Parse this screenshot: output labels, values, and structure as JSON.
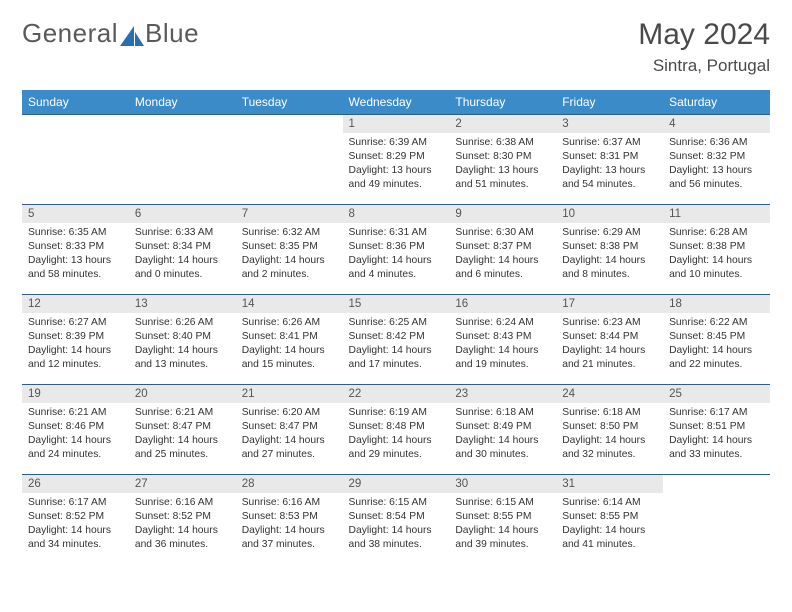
{
  "logo": {
    "text1": "General",
    "text2": "Blue",
    "text_color": "#5a5a5a",
    "icon_color": "#2a6db3"
  },
  "title": {
    "month": "May 2024",
    "location": "Sintra, Portugal"
  },
  "colors": {
    "header_bg": "#3b8bc9",
    "header_text": "#ffffff",
    "daynum_bg": "#e9e9e9",
    "border": "#2f5d87",
    "body_text": "#333333"
  },
  "weekdays": [
    "Sunday",
    "Monday",
    "Tuesday",
    "Wednesday",
    "Thursday",
    "Friday",
    "Saturday"
  ],
  "leading_blanks": 3,
  "days": [
    {
      "n": 1,
      "sr": "6:39 AM",
      "ss": "8:29 PM",
      "dl": "13 hours and 49 minutes."
    },
    {
      "n": 2,
      "sr": "6:38 AM",
      "ss": "8:30 PM",
      "dl": "13 hours and 51 minutes."
    },
    {
      "n": 3,
      "sr": "6:37 AM",
      "ss": "8:31 PM",
      "dl": "13 hours and 54 minutes."
    },
    {
      "n": 4,
      "sr": "6:36 AM",
      "ss": "8:32 PM",
      "dl": "13 hours and 56 minutes."
    },
    {
      "n": 5,
      "sr": "6:35 AM",
      "ss": "8:33 PM",
      "dl": "13 hours and 58 minutes."
    },
    {
      "n": 6,
      "sr": "6:33 AM",
      "ss": "8:34 PM",
      "dl": "14 hours and 0 minutes."
    },
    {
      "n": 7,
      "sr": "6:32 AM",
      "ss": "8:35 PM",
      "dl": "14 hours and 2 minutes."
    },
    {
      "n": 8,
      "sr": "6:31 AM",
      "ss": "8:36 PM",
      "dl": "14 hours and 4 minutes."
    },
    {
      "n": 9,
      "sr": "6:30 AM",
      "ss": "8:37 PM",
      "dl": "14 hours and 6 minutes."
    },
    {
      "n": 10,
      "sr": "6:29 AM",
      "ss": "8:38 PM",
      "dl": "14 hours and 8 minutes."
    },
    {
      "n": 11,
      "sr": "6:28 AM",
      "ss": "8:38 PM",
      "dl": "14 hours and 10 minutes."
    },
    {
      "n": 12,
      "sr": "6:27 AM",
      "ss": "8:39 PM",
      "dl": "14 hours and 12 minutes."
    },
    {
      "n": 13,
      "sr": "6:26 AM",
      "ss": "8:40 PM",
      "dl": "14 hours and 13 minutes."
    },
    {
      "n": 14,
      "sr": "6:26 AM",
      "ss": "8:41 PM",
      "dl": "14 hours and 15 minutes."
    },
    {
      "n": 15,
      "sr": "6:25 AM",
      "ss": "8:42 PM",
      "dl": "14 hours and 17 minutes."
    },
    {
      "n": 16,
      "sr": "6:24 AM",
      "ss": "8:43 PM",
      "dl": "14 hours and 19 minutes."
    },
    {
      "n": 17,
      "sr": "6:23 AM",
      "ss": "8:44 PM",
      "dl": "14 hours and 21 minutes."
    },
    {
      "n": 18,
      "sr": "6:22 AM",
      "ss": "8:45 PM",
      "dl": "14 hours and 22 minutes."
    },
    {
      "n": 19,
      "sr": "6:21 AM",
      "ss": "8:46 PM",
      "dl": "14 hours and 24 minutes."
    },
    {
      "n": 20,
      "sr": "6:21 AM",
      "ss": "8:47 PM",
      "dl": "14 hours and 25 minutes."
    },
    {
      "n": 21,
      "sr": "6:20 AM",
      "ss": "8:47 PM",
      "dl": "14 hours and 27 minutes."
    },
    {
      "n": 22,
      "sr": "6:19 AM",
      "ss": "8:48 PM",
      "dl": "14 hours and 29 minutes."
    },
    {
      "n": 23,
      "sr": "6:18 AM",
      "ss": "8:49 PM",
      "dl": "14 hours and 30 minutes."
    },
    {
      "n": 24,
      "sr": "6:18 AM",
      "ss": "8:50 PM",
      "dl": "14 hours and 32 minutes."
    },
    {
      "n": 25,
      "sr": "6:17 AM",
      "ss": "8:51 PM",
      "dl": "14 hours and 33 minutes."
    },
    {
      "n": 26,
      "sr": "6:17 AM",
      "ss": "8:52 PM",
      "dl": "14 hours and 34 minutes."
    },
    {
      "n": 27,
      "sr": "6:16 AM",
      "ss": "8:52 PM",
      "dl": "14 hours and 36 minutes."
    },
    {
      "n": 28,
      "sr": "6:16 AM",
      "ss": "8:53 PM",
      "dl": "14 hours and 37 minutes."
    },
    {
      "n": 29,
      "sr": "6:15 AM",
      "ss": "8:54 PM",
      "dl": "14 hours and 38 minutes."
    },
    {
      "n": 30,
      "sr": "6:15 AM",
      "ss": "8:55 PM",
      "dl": "14 hours and 39 minutes."
    },
    {
      "n": 31,
      "sr": "6:14 AM",
      "ss": "8:55 PM",
      "dl": "14 hours and 41 minutes."
    }
  ]
}
